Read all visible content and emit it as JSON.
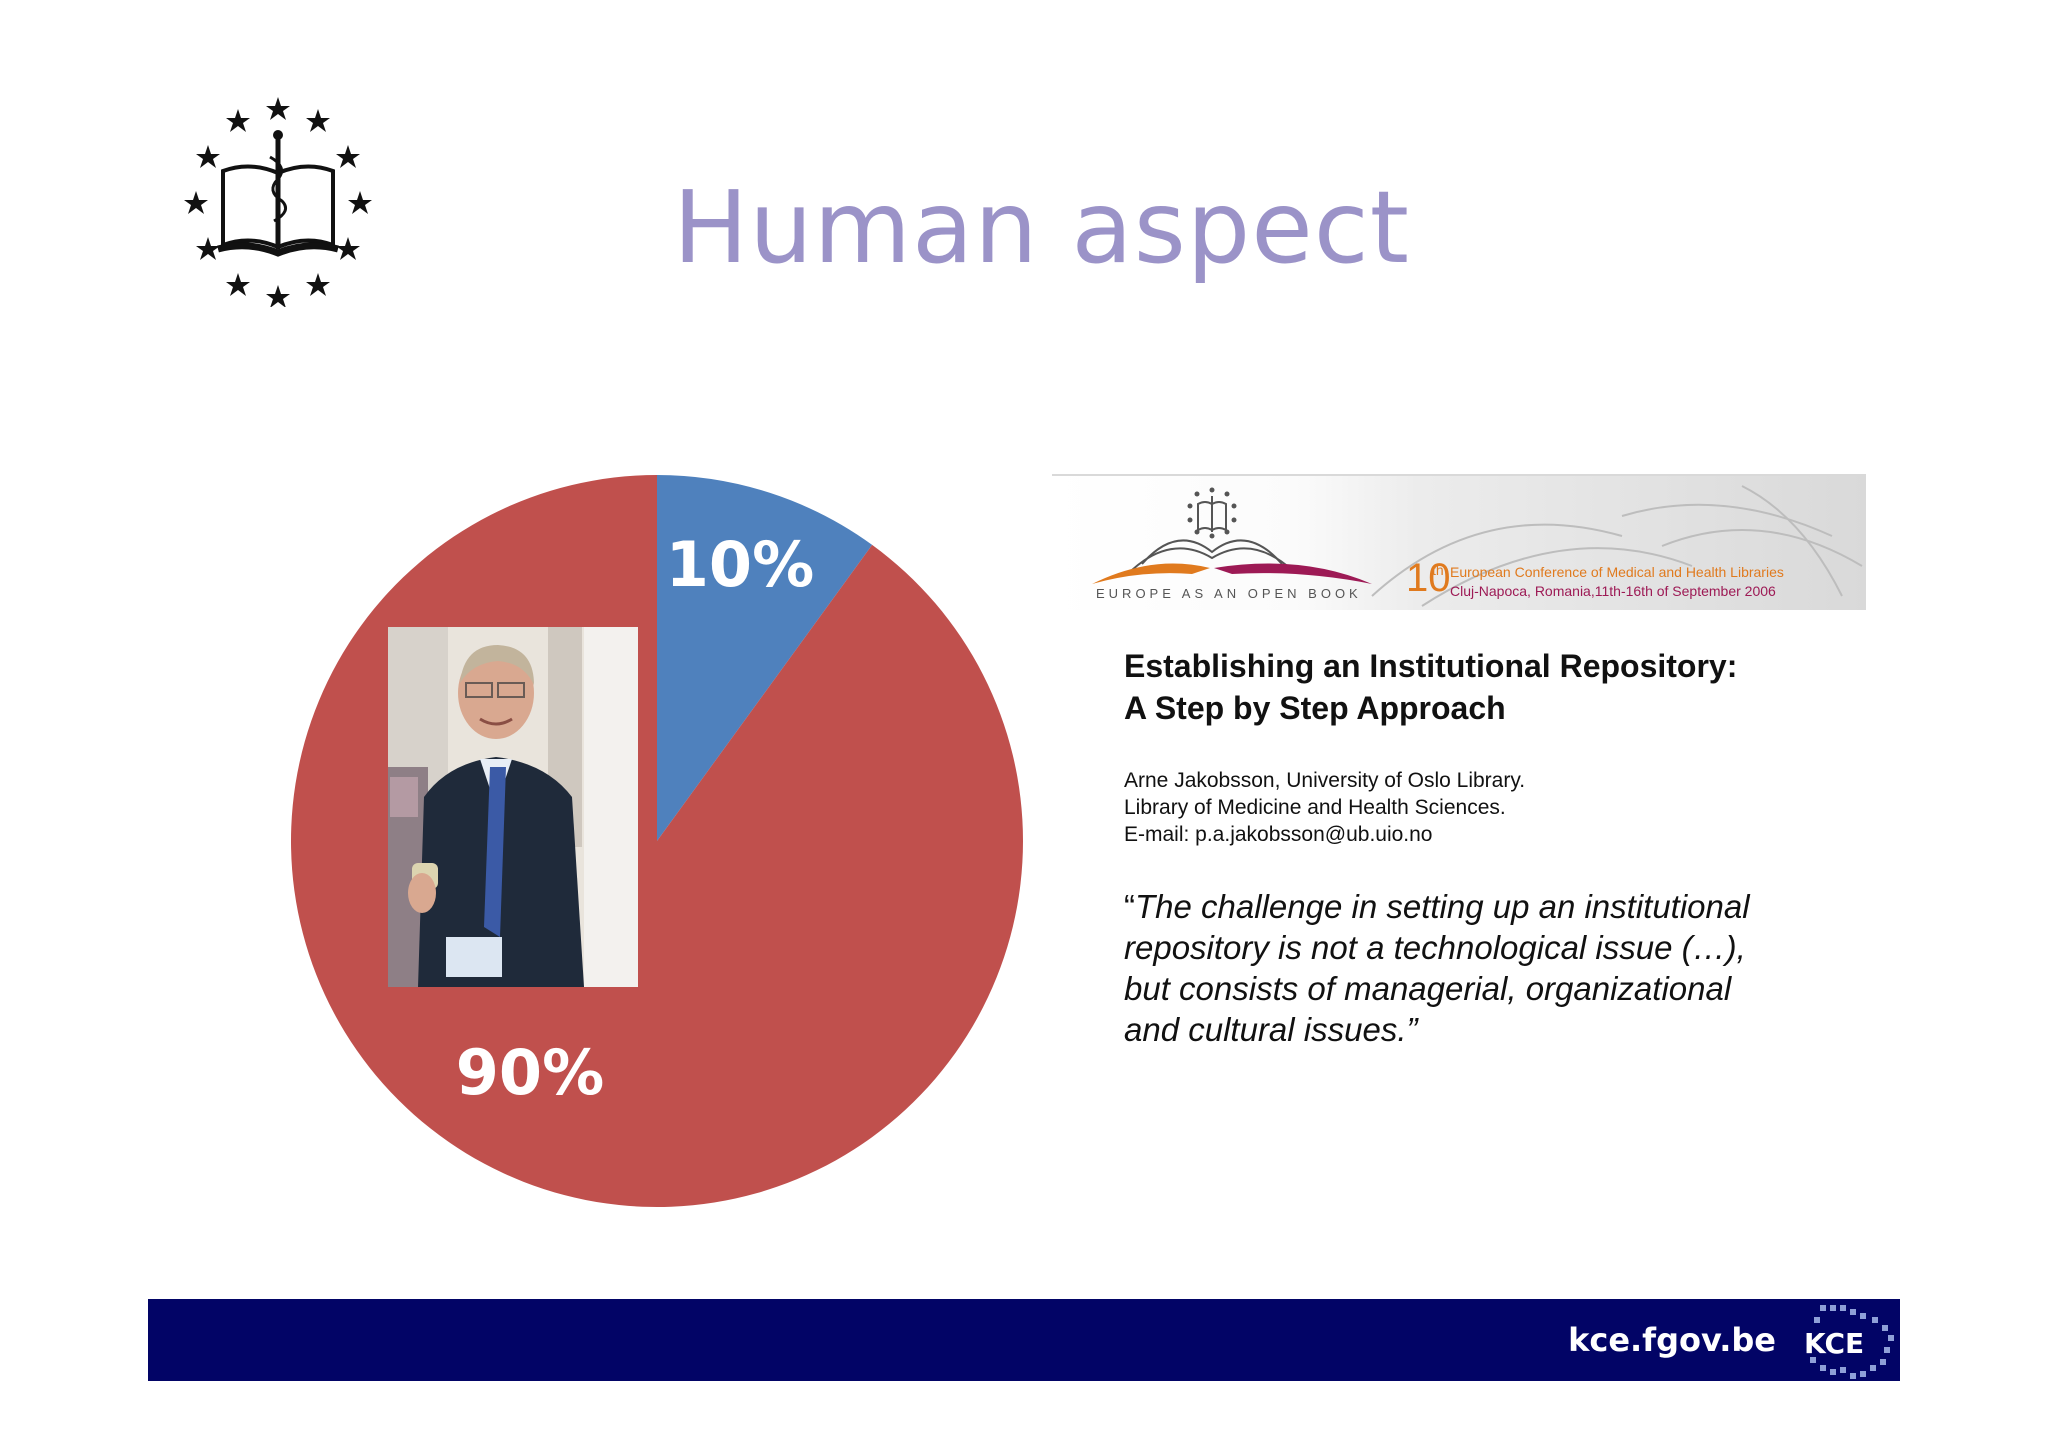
{
  "slide": {
    "title": "Human aspect"
  },
  "chart_data": {
    "type": "pie",
    "slices": [
      {
        "label": "10%",
        "value": 10,
        "color": "#4f81bd"
      },
      {
        "label": "90%",
        "value": 90,
        "color": "#c0504d"
      }
    ]
  },
  "banner": {
    "tagline": "EUROPE AS AN OPEN BOOK",
    "edition_number": "10",
    "edition_suffix": "th",
    "conference": "European Conference of Medical and Health Libraries",
    "location": "Cluj-Napoca, Romania,11th-16th of September 2006",
    "colors": {
      "orange": "#e07a1e",
      "maroon": "#9d1a55"
    }
  },
  "paper": {
    "title_line1": "Establishing an Institutional Repository:",
    "title_line2": "A Step by Step Approach",
    "author_line1": "Arne Jakobsson, University of Oslo Library.",
    "author_line2": "Library of Medicine and Health Sciences.",
    "author_line3": "E-mail: p.a.jakobsson@ub.uio.no",
    "quote_open": "“",
    "quote_line1": "The challenge in setting up an institutional",
    "quote_line2": "repository is not a technological issue (…),",
    "quote_line3": "but consists of managerial, organizational",
    "quote_line4": "and cultural issues.”"
  },
  "footer": {
    "url": "kce.fgov.be",
    "logo_text": "KCE",
    "background": "#020466"
  },
  "icons": {
    "header_logo": "eahil-stars-book-logo-icon",
    "photo": "person-photo",
    "footer_logo": "kce-logo-icon"
  }
}
